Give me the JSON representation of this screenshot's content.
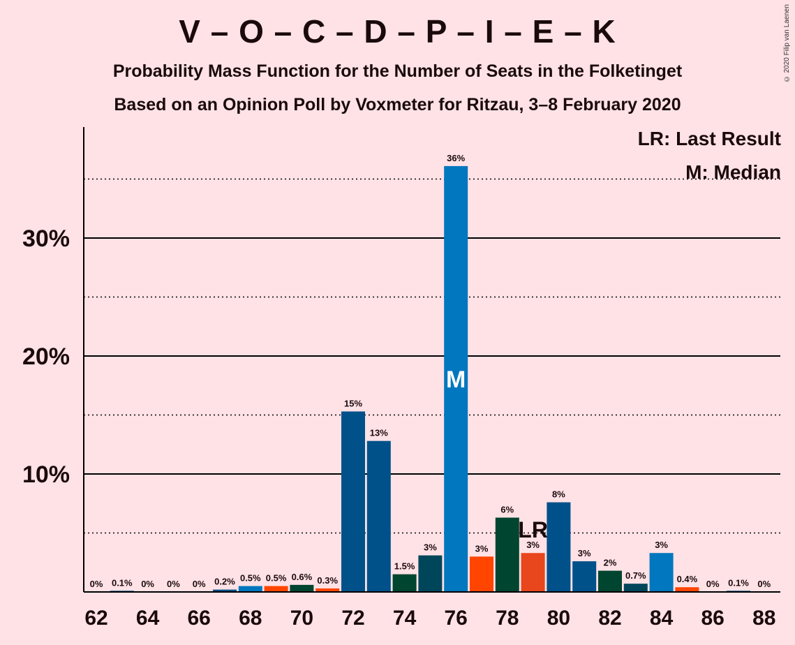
{
  "title": "V – O – C – D – P – I – E – K",
  "subtitle1": "Probability Mass Function for the Number of Seats in the Folketinget",
  "subtitle2": "Based on an Opinion Poll by Voxmeter for Ritzau, 3–8 February 2020",
  "credit": "© 2020 Filip van Laenen",
  "legend": {
    "lr": "LR: Last Result",
    "median": "M: Median"
  },
  "colors": {
    "background": "#FFE2E6",
    "blue": "#0077BE",
    "dark_blue": "#00518A",
    "green": "#004530",
    "teal": "#00465A",
    "orange": "#FF4500",
    "red_orange": "#E8461C",
    "gridline": "#000000"
  },
  "chart_data": {
    "type": "bar",
    "x": [
      62,
      63,
      64,
      65,
      66,
      67,
      68,
      69,
      70,
      71,
      72,
      73,
      74,
      75,
      76,
      77,
      78,
      79,
      80,
      81,
      82,
      83,
      84,
      85,
      86,
      87,
      88
    ],
    "values": [
      0,
      0.1,
      0,
      0,
      0,
      0.2,
      0.5,
      0.5,
      0.6,
      0.3,
      15.3,
      12.8,
      1.5,
      3.1,
      36.1,
      3.0,
      6.3,
      3.3,
      7.6,
      2.6,
      1.8,
      0.7,
      3.3,
      0.4,
      0,
      0.1,
      0
    ],
    "labels": [
      "0%",
      "0.1%",
      "0%",
      "0%",
      "0%",
      "0.2%",
      "0.5%",
      "0.5%",
      "0.6%",
      "0.3%",
      "15%",
      "13%",
      "1.5%",
      "3%",
      "36%",
      "3%",
      "6%",
      "3%",
      "8%",
      "3%",
      "2%",
      "0.7%",
      "3%",
      "0.4%",
      "0%",
      "0.1%",
      "0%"
    ],
    "bar_colors": [
      "#0077BE",
      "#00518A",
      "#004530",
      "#00465A",
      "#0077BE",
      "#00518A",
      "#0077BE",
      "#FF4500",
      "#004530",
      "#FF4500",
      "#00518A",
      "#00518A",
      "#004530",
      "#00465A",
      "#0077BE",
      "#FF4500",
      "#004530",
      "#E8461C",
      "#00518A",
      "#00518A",
      "#004530",
      "#00465A",
      "#0077BE",
      "#FF4500",
      "#0077BE",
      "#00518A",
      "#004530"
    ],
    "xticks": [
      62,
      64,
      66,
      68,
      70,
      72,
      74,
      76,
      78,
      80,
      82,
      84,
      86,
      88
    ],
    "yticks": [
      {
        "value": 10,
        "label": "10%"
      },
      {
        "value": 20,
        "label": "20%"
      },
      {
        "value": 30,
        "label": "30%"
      }
    ],
    "dotted_gridlines": [
      5,
      15,
      25,
      35
    ],
    "ylim": [
      0,
      39
    ],
    "median_seat": 76,
    "median_label": "M",
    "last_result_seat": 79,
    "last_result_label": "LR"
  }
}
